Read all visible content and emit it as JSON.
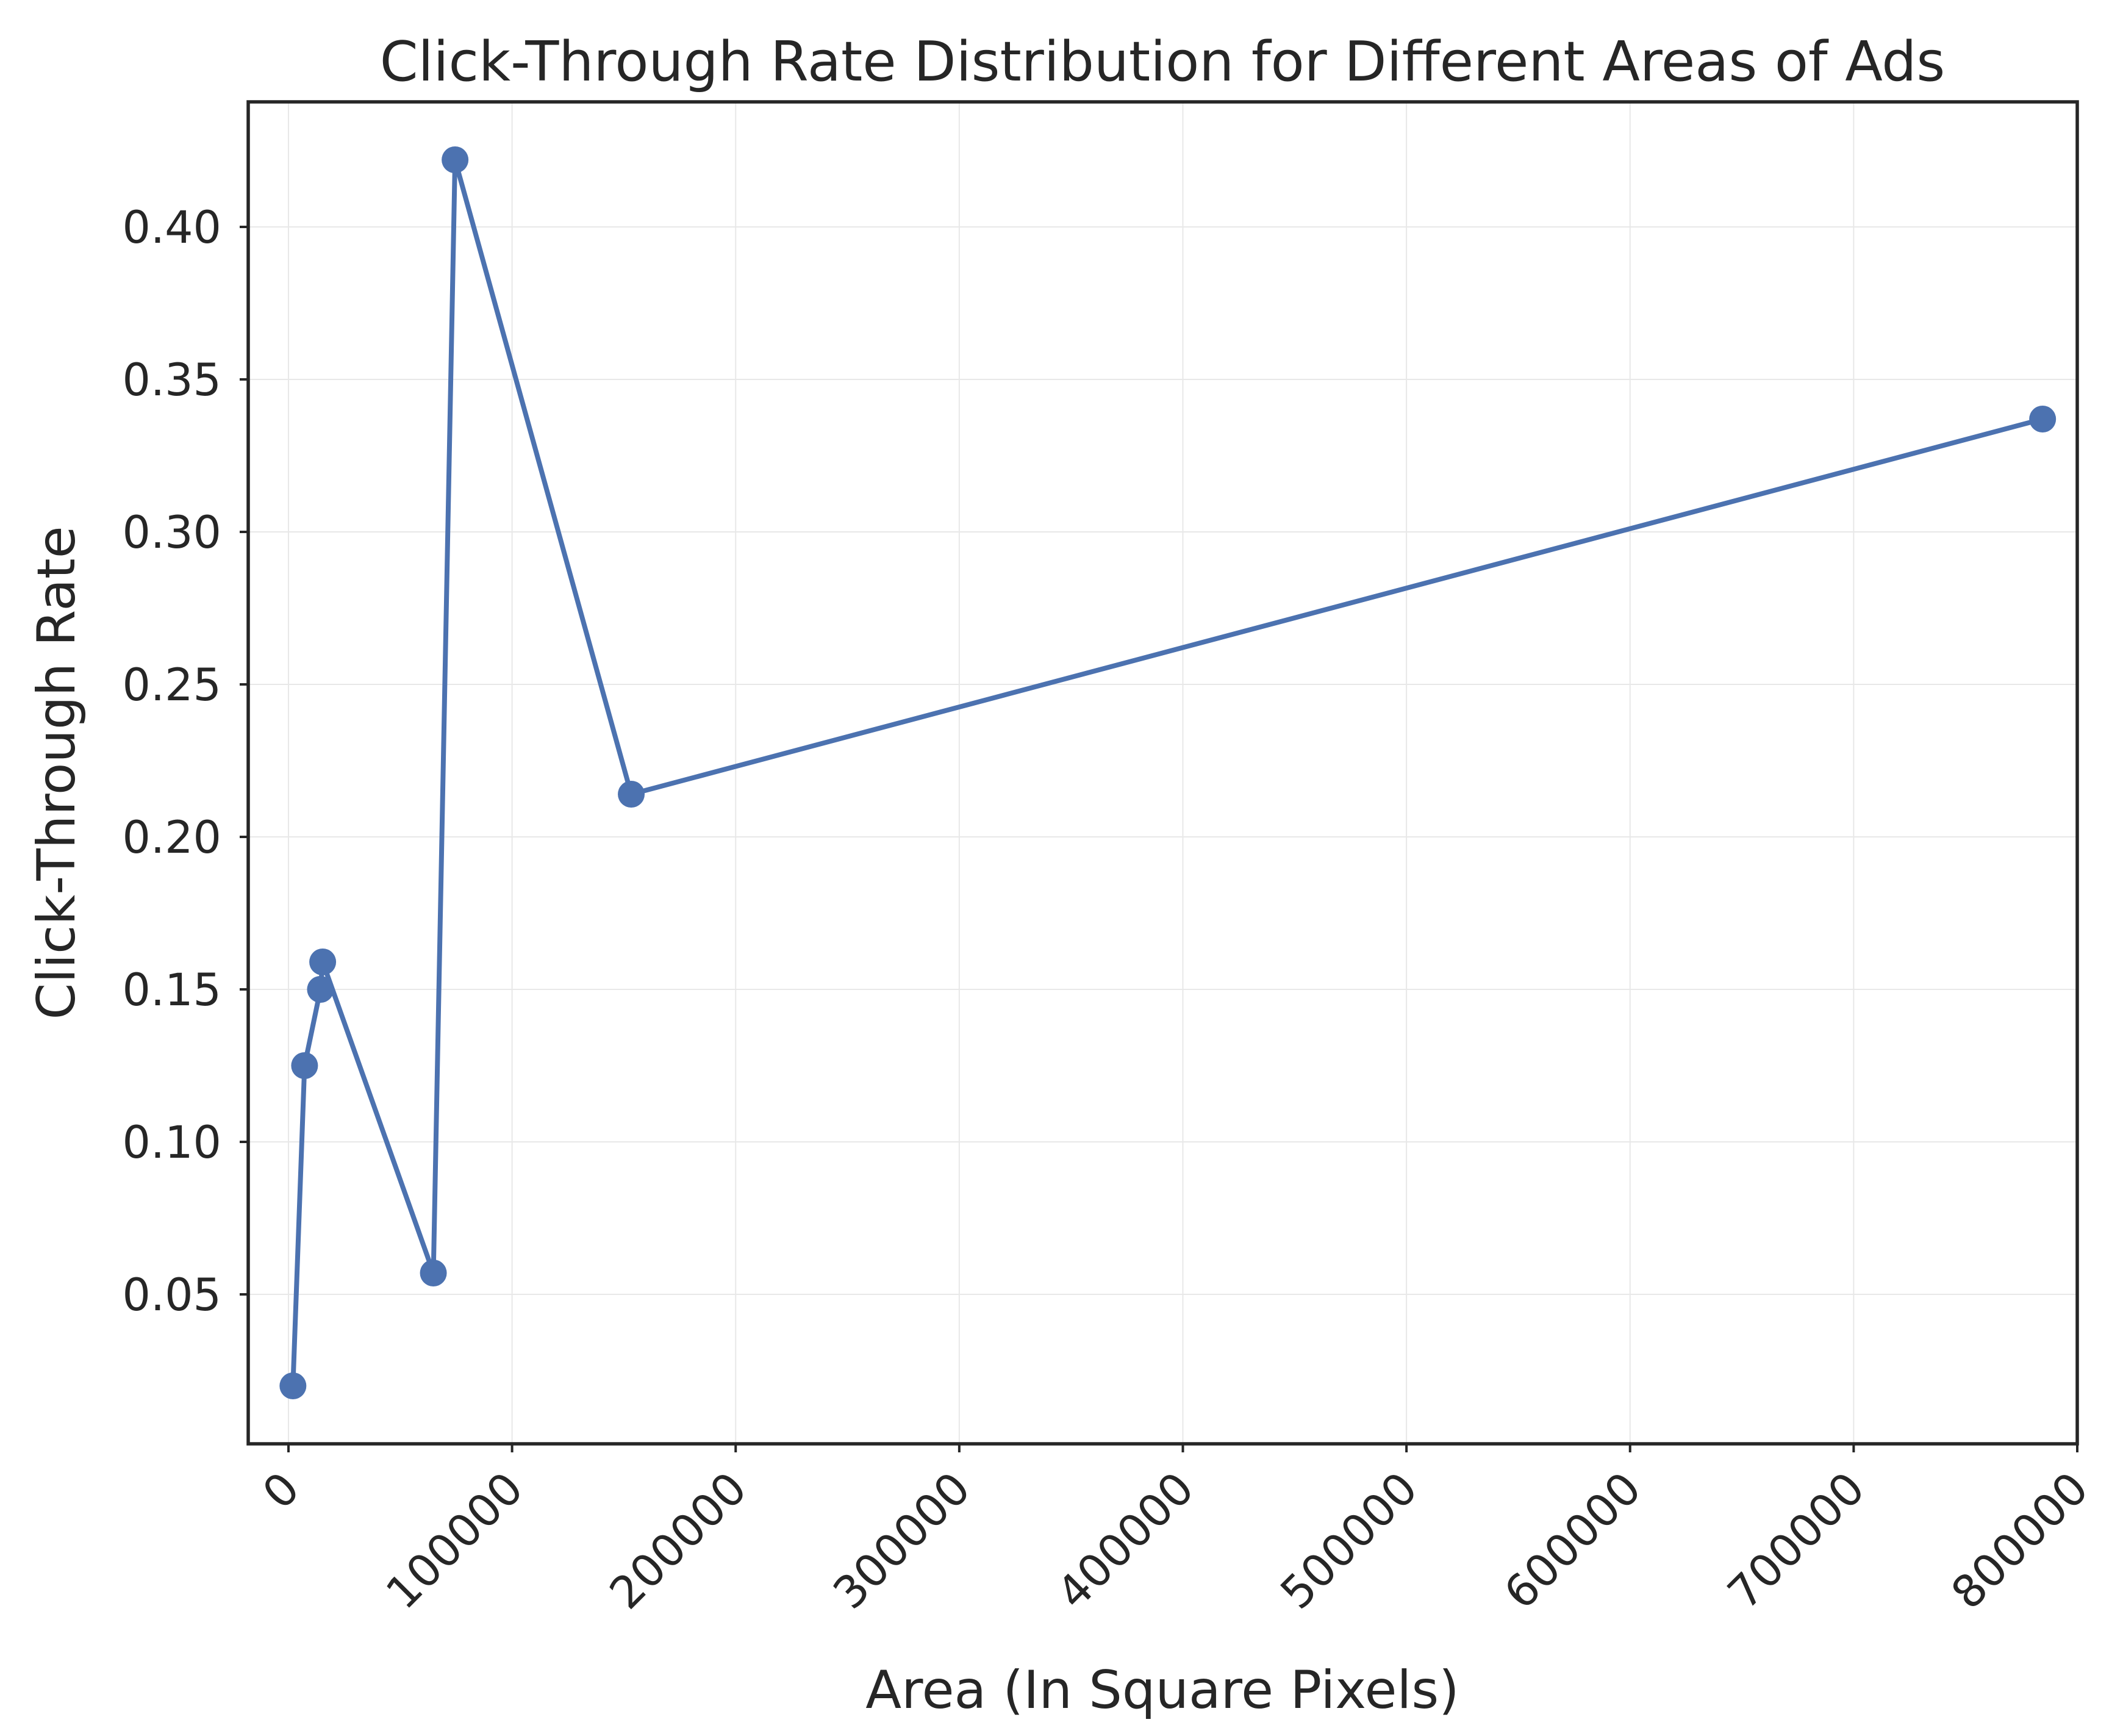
{
  "chart_data": {
    "type": "line",
    "title": "Click-Through Rate Distribution for Different Areas of Ads",
    "xlabel": "Area (In Square Pixels)",
    "ylabel": "Click-Through Rate",
    "xlim": [
      -18000,
      800000
    ],
    "ylim": [
      0.001,
      0.441
    ],
    "x_ticks": [
      0,
      100000,
      200000,
      300000,
      400000,
      500000,
      600000,
      700000,
      800000
    ],
    "x_tick_labels": [
      "0",
      "100000",
      "200000",
      "300000",
      "400000",
      "500000",
      "600000",
      "700000",
      "800000"
    ],
    "y_ticks": [
      0.05,
      0.1,
      0.15,
      0.2,
      0.25,
      0.3,
      0.35,
      0.4
    ],
    "y_tick_labels": [
      "0.05",
      "0.10",
      "0.15",
      "0.20",
      "0.25",
      "0.30",
      "0.35",
      "0.40"
    ],
    "x_tick_rotation": 45,
    "grid": true,
    "legend": false,
    "series": [
      {
        "color": "#4c72b0",
        "marker": "circle",
        "x": [
          2000,
          7200,
          14300,
          15300,
          64800,
          74500,
          153300,
          784500
        ],
        "y": [
          0.02,
          0.125,
          0.15,
          0.159,
          0.057,
          0.422,
          0.214,
          0.337
        ]
      }
    ]
  }
}
